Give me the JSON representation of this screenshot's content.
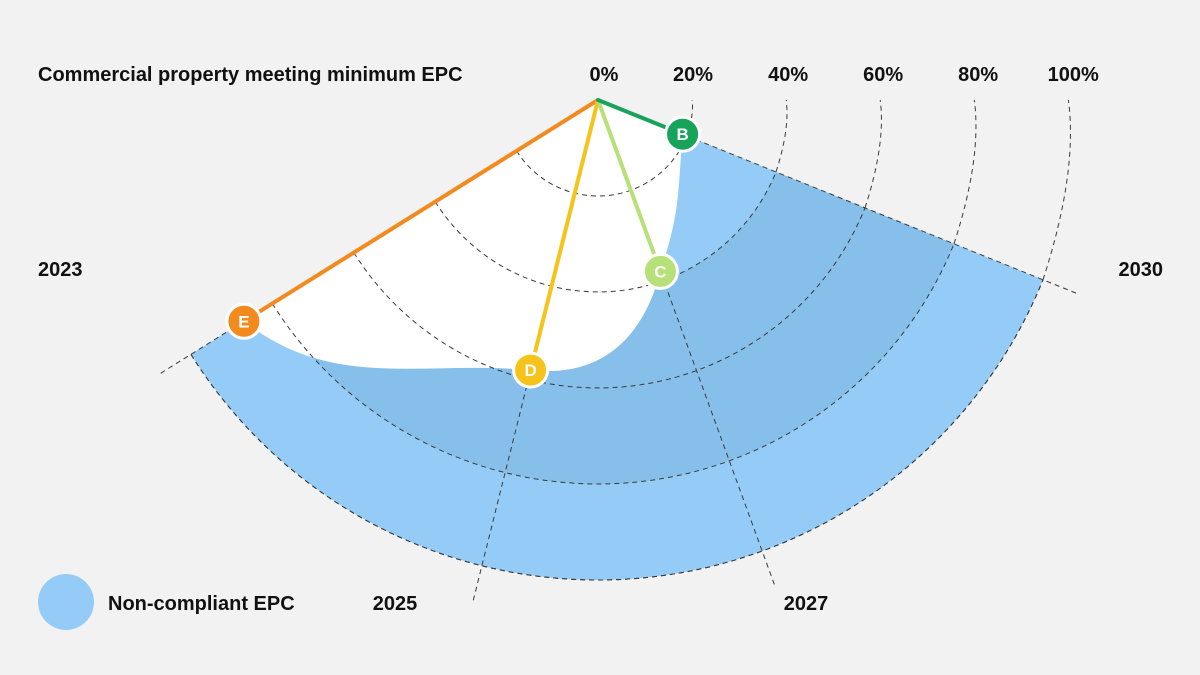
{
  "chart_data": {
    "type": "radial",
    "title": "Commercial property meeting minimum EPC",
    "radial_axis": {
      "ticks": [
        0,
        20,
        40,
        60,
        80,
        100
      ],
      "tick_labels": [
        "0%",
        "20%",
        "40%",
        "60%",
        "80%",
        "100%"
      ]
    },
    "angular_axis": {
      "years": [
        2023,
        2025,
        2027,
        2030
      ],
      "labels": [
        "2023",
        "2025",
        "2027",
        "2030"
      ]
    },
    "points": [
      {
        "label": "E",
        "year": 2023,
        "value": 87,
        "color": "#f28a1e"
      },
      {
        "label": "D",
        "year": 2025,
        "value": 58,
        "color": "#f6c31a"
      },
      {
        "label": "C",
        "year": 2027,
        "value": 38,
        "color": "#b6e078"
      },
      {
        "label": "B",
        "year": 2030,
        "value": 19,
        "color": "#18a35a"
      }
    ],
    "legend": [
      {
        "label": "Non-compliant EPC",
        "color": "#94ccf7"
      }
    ],
    "colors": {
      "region": "#94ccf7",
      "region_dark": "#86bfe9",
      "compliant": "#ffffff",
      "background": "#f2f2f2"
    }
  }
}
